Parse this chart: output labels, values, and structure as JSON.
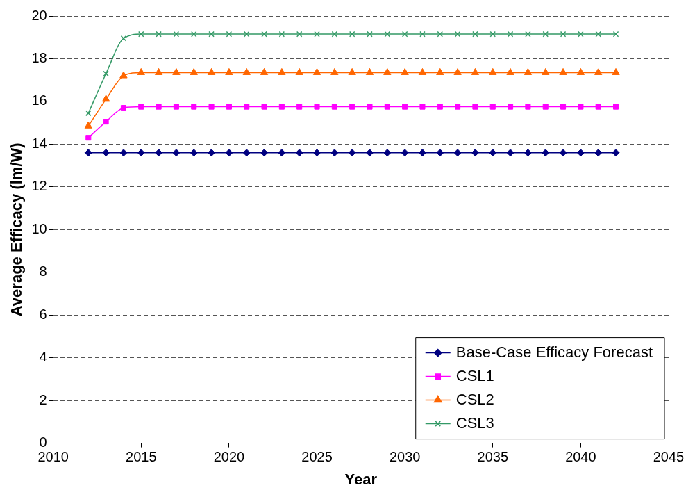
{
  "chart_data": {
    "type": "line",
    "xlabel": "Year",
    "ylabel": "Average Efficacy (lm/W)",
    "x": [
      2012,
      2013,
      2014,
      2015,
      2016,
      2017,
      2018,
      2019,
      2020,
      2021,
      2022,
      2023,
      2024,
      2025,
      2026,
      2027,
      2028,
      2029,
      2030,
      2031,
      2032,
      2033,
      2034,
      2035,
      2036,
      2037,
      2038,
      2039,
      2040,
      2041,
      2042
    ],
    "series": [
      {
        "name": "Base-Case Efficacy Forecast",
        "color": "#000080",
        "marker": "diamond",
        "values": [
          13.6,
          13.6,
          13.6,
          13.6,
          13.6,
          13.6,
          13.6,
          13.6,
          13.6,
          13.6,
          13.6,
          13.6,
          13.6,
          13.6,
          13.6,
          13.6,
          13.6,
          13.6,
          13.6,
          13.6,
          13.6,
          13.6,
          13.6,
          13.6,
          13.6,
          13.6,
          13.6,
          13.6,
          13.6,
          13.6,
          13.6
        ]
      },
      {
        "name": "CSL1",
        "color": "#ff00ff",
        "marker": "square",
        "values": [
          14.3,
          15.05,
          15.7,
          15.75,
          15.75,
          15.75,
          15.75,
          15.75,
          15.75,
          15.75,
          15.75,
          15.75,
          15.75,
          15.75,
          15.75,
          15.75,
          15.75,
          15.75,
          15.75,
          15.75,
          15.75,
          15.75,
          15.75,
          15.75,
          15.75,
          15.75,
          15.75,
          15.75,
          15.75,
          15.75,
          15.75
        ]
      },
      {
        "name": "CSL2",
        "color": "#ff6600",
        "marker": "triangle",
        "values": [
          14.85,
          16.1,
          17.2,
          17.35,
          17.35,
          17.35,
          17.35,
          17.35,
          17.35,
          17.35,
          17.35,
          17.35,
          17.35,
          17.35,
          17.35,
          17.35,
          17.35,
          17.35,
          17.35,
          17.35,
          17.35,
          17.35,
          17.35,
          17.35,
          17.35,
          17.35,
          17.35,
          17.35,
          17.35,
          17.35,
          17.35
        ]
      },
      {
        "name": "CSL3",
        "color": "#339966",
        "marker": "cross",
        "values": [
          15.45,
          17.3,
          18.95,
          19.15,
          19.15,
          19.15,
          19.15,
          19.15,
          19.15,
          19.15,
          19.15,
          19.15,
          19.15,
          19.15,
          19.15,
          19.15,
          19.15,
          19.15,
          19.15,
          19.15,
          19.15,
          19.15,
          19.15,
          19.15,
          19.15,
          19.15,
          19.15,
          19.15,
          19.15,
          19.15,
          19.15
        ]
      }
    ],
    "xlim": [
      2010,
      2045
    ],
    "xticks": [
      2010,
      2015,
      2020,
      2025,
      2030,
      2035,
      2040,
      2045
    ],
    "ylim": [
      0,
      20
    ],
    "yticks": [
      0,
      2,
      4,
      6,
      8,
      10,
      12,
      14,
      16,
      18,
      20
    ],
    "grid": "y",
    "line_style": "solid",
    "legend": "bottom right"
  }
}
